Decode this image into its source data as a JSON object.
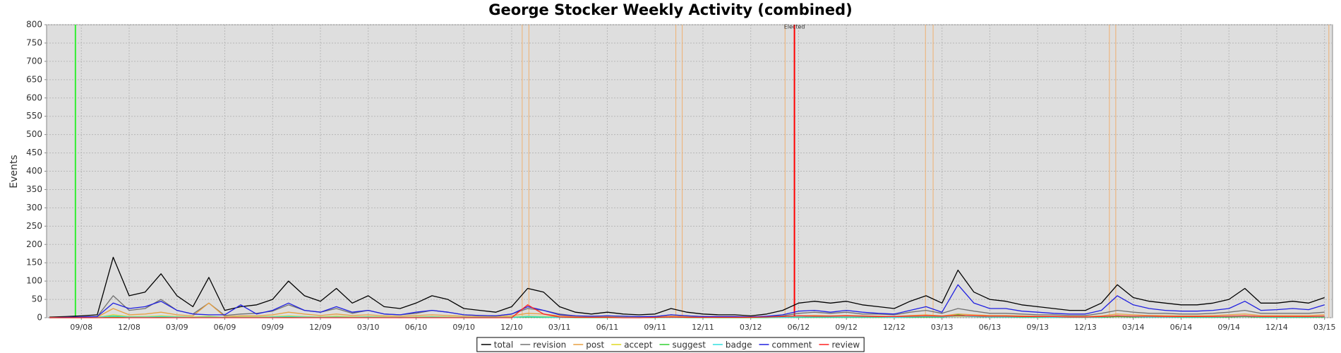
{
  "chart_data": {
    "type": "line",
    "title": "George Stocker Weekly Activity (combined)",
    "y_label": "Events",
    "categories": [
      null,
      null,
      "09/08",
      null,
      null,
      "12/08",
      null,
      null,
      "03/09",
      null,
      null,
      "06/09",
      null,
      null,
      "09/09",
      null,
      null,
      "12/09",
      null,
      null,
      "03/10",
      null,
      null,
      "06/10",
      null,
      null,
      "09/10",
      null,
      null,
      "12/10",
      null,
      null,
      "03/11",
      null,
      null,
      "06/11",
      null,
      null,
      "09/11",
      null,
      null,
      "12/11",
      null,
      null,
      "03/12",
      null,
      null,
      "06/12",
      null,
      null,
      "09/12",
      null,
      null,
      "12/12",
      null,
      null,
      "03/13",
      null,
      null,
      "06/13",
      null,
      null,
      "09/13",
      null,
      null,
      "12/13",
      null,
      null,
      "03/14",
      null,
      null,
      "06/14",
      null,
      null,
      "09/14",
      null,
      null,
      "12/14",
      null,
      null,
      "03/15"
    ],
    "ylim": [
      0,
      800
    ],
    "yticks": [
      0,
      50,
      100,
      150,
      200,
      250,
      300,
      350,
      400,
      450,
      500,
      550,
      600,
      650,
      700,
      750,
      800
    ],
    "grid": true,
    "series": [
      {
        "name": "total",
        "color": "#000000",
        "values": [
          2,
          3,
          5,
          8,
          165,
          60,
          70,
          120,
          60,
          30,
          110,
          20,
          30,
          35,
          50,
          100,
          60,
          45,
          80,
          40,
          60,
          30,
          25,
          40,
          60,
          50,
          25,
          20,
          15,
          30,
          80,
          70,
          30,
          15,
          10,
          15,
          10,
          8,
          10,
          25,
          15,
          10,
          8,
          8,
          5,
          10,
          20,
          40,
          45,
          40,
          45,
          35,
          30,
          25,
          45,
          60,
          40,
          130,
          70,
          50,
          45,
          35,
          30,
          25,
          20,
          20,
          40,
          90,
          55,
          45,
          40,
          35,
          35,
          40,
          50,
          80,
          40,
          40,
          45,
          40,
          55
        ]
      },
      {
        "name": "revision",
        "color": "#707070",
        "values": [
          1,
          1,
          2,
          3,
          60,
          20,
          25,
          50,
          20,
          10,
          40,
          6,
          10,
          12,
          18,
          35,
          20,
          15,
          25,
          12,
          20,
          10,
          8,
          12,
          20,
          15,
          8,
          6,
          5,
          10,
          25,
          20,
          10,
          5,
          3,
          5,
          3,
          2,
          3,
          8,
          5,
          3,
          2,
          2,
          2,
          3,
          5,
          12,
          15,
          12,
          15,
          10,
          10,
          8,
          15,
          20,
          12,
          25,
          18,
          12,
          12,
          10,
          8,
          8,
          6,
          6,
          12,
          20,
          15,
          12,
          12,
          10,
          10,
          12,
          15,
          20,
          12,
          12,
          12,
          12,
          15
        ]
      },
      {
        "name": "post",
        "color": "#e8a040",
        "values": [
          1,
          1,
          1,
          2,
          25,
          8,
          10,
          15,
          8,
          5,
          40,
          3,
          5,
          5,
          8,
          15,
          10,
          6,
          10,
          6,
          8,
          5,
          4,
          6,
          8,
          6,
          4,
          3,
          3,
          5,
          12,
          10,
          5,
          3,
          2,
          3,
          2,
          2,
          2,
          4,
          3,
          2,
          2,
          2,
          1,
          2,
          3,
          5,
          6,
          5,
          6,
          5,
          4,
          3,
          6,
          8,
          5,
          10,
          8,
          6,
          6,
          5,
          4,
          4,
          3,
          3,
          5,
          10,
          8,
          6,
          6,
          5,
          5,
          6,
          8,
          10,
          6,
          6,
          6,
          6,
          8
        ]
      },
      {
        "name": "accept",
        "color": "#e0d820",
        "values": [
          0,
          0,
          0,
          1,
          8,
          3,
          3,
          5,
          3,
          2,
          4,
          1,
          2,
          2,
          3,
          5,
          3,
          2,
          4,
          2,
          3,
          2,
          1,
          2,
          3,
          2,
          1,
          1,
          1,
          2,
          4,
          3,
          2,
          1,
          1,
          1,
          1,
          0,
          1,
          2,
          1,
          1,
          0,
          0,
          0,
          1,
          1,
          2,
          2,
          2,
          2,
          2,
          1,
          1,
          2,
          3,
          2,
          4,
          3,
          2,
          2,
          2,
          1,
          1,
          1,
          1,
          2,
          4,
          3,
          2,
          2,
          2,
          2,
          2,
          3,
          4,
          2,
          2,
          2,
          2,
          3
        ]
      },
      {
        "name": "suggest",
        "color": "#30d030",
        "values": [
          0,
          0,
          0,
          0,
          2,
          1,
          1,
          2,
          1,
          0,
          1,
          0,
          1,
          1,
          1,
          2,
          1,
          1,
          1,
          1,
          1,
          1,
          0,
          1,
          1,
          1,
          0,
          0,
          0,
          1,
          2,
          1,
          1,
          0,
          0,
          0,
          0,
          0,
          0,
          1,
          0,
          0,
          0,
          0,
          0,
          0,
          1,
          1,
          1,
          1,
          1,
          1,
          1,
          1,
          1,
          2,
          1,
          8,
          3,
          2,
          2,
          1,
          1,
          1,
          1,
          1,
          1,
          3,
          2,
          2,
          2,
          1,
          1,
          1,
          2,
          3,
          1,
          1,
          1,
          1,
          2
        ]
      },
      {
        "name": "badge",
        "color": "#30e0e0",
        "values": [
          0,
          0,
          1,
          1,
          5,
          2,
          2,
          3,
          2,
          1,
          2,
          1,
          1,
          1,
          2,
          3,
          2,
          1,
          2,
          1,
          2,
          1,
          1,
          1,
          2,
          1,
          1,
          1,
          1,
          1,
          3,
          2,
          1,
          1,
          1,
          1,
          1,
          1,
          1,
          1,
          1,
          1,
          1,
          1,
          1,
          1,
          1,
          2,
          2,
          2,
          2,
          2,
          2,
          1,
          2,
          3,
          2,
          5,
          3,
          2,
          2,
          2,
          2,
          1,
          1,
          1,
          2,
          5,
          3,
          2,
          2,
          2,
          2,
          2,
          3,
          4,
          2,
          2,
          2,
          2,
          3
        ]
      },
      {
        "name": "comment",
        "color": "#2020e0",
        "values": [
          0,
          1,
          2,
          3,
          40,
          25,
          30,
          45,
          20,
          10,
          8,
          8,
          35,
          10,
          20,
          40,
          20,
          15,
          30,
          15,
          20,
          10,
          8,
          15,
          20,
          15,
          8,
          6,
          5,
          10,
          30,
          20,
          8,
          5,
          4,
          5,
          4,
          3,
          3,
          8,
          5,
          3,
          3,
          3,
          2,
          4,
          8,
          18,
          20,
          15,
          20,
          15,
          12,
          10,
          20,
          30,
          15,
          90,
          40,
          25,
          25,
          18,
          15,
          12,
          10,
          10,
          20,
          60,
          35,
          25,
          20,
          18,
          18,
          20,
          25,
          45,
          20,
          22,
          25,
          22,
          35
        ]
      },
      {
        "name": "review",
        "color": "#ff2020",
        "values": [
          0,
          0,
          0,
          0,
          0,
          0,
          0,
          0,
          0,
          0,
          0,
          0,
          0,
          0,
          0,
          0,
          0,
          0,
          0,
          0,
          0,
          0,
          0,
          0,
          0,
          0,
          0,
          0,
          0,
          0,
          35,
          10,
          2,
          1,
          1,
          1,
          0,
          0,
          1,
          2,
          1,
          1,
          1,
          1,
          1,
          2,
          3,
          5,
          4,
          4,
          5,
          4,
          3,
          3,
          4,
          5,
          4,
          6,
          5,
          4,
          4,
          3,
          3,
          3,
          2,
          2,
          3,
          5,
          4,
          4,
          3,
          3,
          3,
          3,
          4,
          5,
          3,
          3,
          3,
          3,
          4
        ]
      }
    ],
    "markers": [
      {
        "x": 1.63,
        "color": "#33ee33"
      },
      {
        "x": 29.66,
        "color": "#f0b070"
      },
      {
        "x": 30.08,
        "color": "#f0b070"
      },
      {
        "x": 39.3,
        "color": "#f0b070"
      },
      {
        "x": 39.7,
        "color": "#f0b070"
      },
      {
        "x": 46.15,
        "color": "#f0b070"
      },
      {
        "x": 46.74,
        "color": "#ff0000"
      },
      {
        "x": 54.96,
        "color": "#f0b070"
      },
      {
        "x": 55.44,
        "color": "#f0b070"
      },
      {
        "x": 66.5,
        "color": "#f0b070"
      },
      {
        "x": 66.9,
        "color": "#f0b070"
      },
      {
        "x": 80.27,
        "color": "#f0b070"
      }
    ],
    "annotations": [
      {
        "text": "Elected",
        "x": 46.74
      }
    ]
  }
}
